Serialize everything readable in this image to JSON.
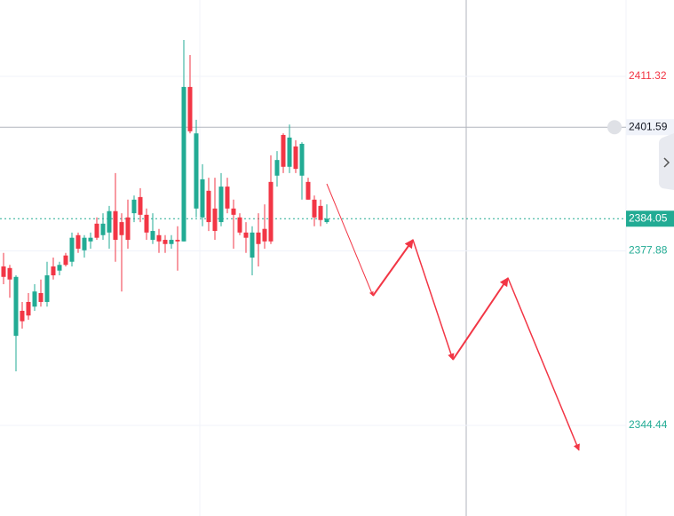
{
  "chart_data": {
    "type": "candlestick",
    "open": [
      2374.9,
      2374.6,
      2361.6,
      2366.4,
      2368.1,
      2367.2,
      2369.8,
      2368.1,
      2374.9,
      2374.1,
      2377.0,
      2375.8,
      2380.9,
      2378.0,
      2379.7,
      2383.1,
      2380.9,
      2381.4,
      2385.5,
      2383.4,
      2384.3,
      2385.1,
      2388.2,
      2384.8,
      2380.0,
      2380.9,
      2380.0,
      2379.2,
      2380.0,
      2379.7,
      2409.3,
      2386.0,
      2384.3,
      2389.4,
      2386.0,
      2383.4,
      2390.2,
      2386.0,
      2384.3,
      2381.4,
      2376.6,
      2381.4,
      2382.1,
      2391.1,
      2392.3,
      2400.1,
      2394.0,
      2397.9,
      2392.3,
      2391.1,
      2387.7,
      2386.5,
      2383.4
    ],
    "high": [
      2377.5,
      2375.2,
      2373.2,
      2368.1,
      2369.8,
      2371.5,
      2372.4,
      2375.8,
      2376.6,
      2375.8,
      2377.5,
      2381.4,
      2381.4,
      2380.9,
      2381.4,
      2384.3,
      2385.1,
      2386.5,
      2392.8,
      2385.1,
      2387.7,
      2388.5,
      2389.9,
      2386.0,
      2385.1,
      2382.1,
      2380.9,
      2380.9,
      2382.6,
      2418.3,
      2415.4,
      2403.0,
      2394.5,
      2391.9,
      2391.9,
      2392.8,
      2391.9,
      2387.7,
      2385.1,
      2383.4,
      2382.6,
      2385.1,
      2386.8,
      2396.2,
      2397.0,
      2400.4,
      2402.1,
      2399.1,
      2398.7,
      2391.9,
      2388.5,
      2387.7,
      2386.8
    ],
    "low": [
      2371.5,
      2368.9,
      2354.8,
      2363.0,
      2364.7,
      2366.4,
      2367.2,
      2367.2,
      2372.4,
      2373.2,
      2374.9,
      2374.9,
      2377.5,
      2376.6,
      2378.3,
      2380.0,
      2380.0,
      2378.3,
      2375.8,
      2370.1,
      2378.3,
      2383.4,
      2383.4,
      2380.0,
      2379.2,
      2377.5,
      2377.5,
      2378.3,
      2374.1,
      2379.7,
      2400.4,
      2384.3,
      2382.6,
      2381.7,
      2380.0,
      2382.6,
      2385.1,
      2378.3,
      2380.9,
      2377.5,
      2373.2,
      2374.9,
      2378.3,
      2379.2,
      2390.2,
      2392.8,
      2392.8,
      2392.8,
      2387.7,
      2387.7,
      2382.6,
      2382.6,
      2383.1
    ],
    "close": [
      2372.9,
      2372.4,
      2372.9,
      2364.4,
      2365.5,
      2370.1,
      2368.1,
      2373.2,
      2373.2,
      2375.2,
      2375.2,
      2380.4,
      2378.3,
      2380.4,
      2380.4,
      2380.4,
      2383.1,
      2385.5,
      2380.0,
      2380.9,
      2380.0,
      2387.7,
      2384.8,
      2381.4,
      2381.7,
      2379.7,
      2379.2,
      2380.0,
      2379.7,
      2409.3,
      2400.8,
      2400.4,
      2391.6,
      2383.4,
      2381.7,
      2390.2,
      2386.0,
      2384.8,
      2381.4,
      2380.4,
      2381.4,
      2379.2,
      2379.7,
      2379.7,
      2395.3,
      2394.0,
      2399.6,
      2393.6,
      2398.4,
      2387.7,
      2384.3,
      2383.8,
      2384.05
    ],
    "up_color": "#22ab94",
    "down_color": "#f23645",
    "ylim": [
      2327.08,
      2425.96
    ],
    "yticks": [
      2411.32,
      2377.88,
      2344.44
    ],
    "tick_colors": [
      "#f23645",
      "#22ab94",
      "#22ab94"
    ],
    "grid": true,
    "crosshair_price": 2401.59,
    "last_price": 2384.05
  }
}
